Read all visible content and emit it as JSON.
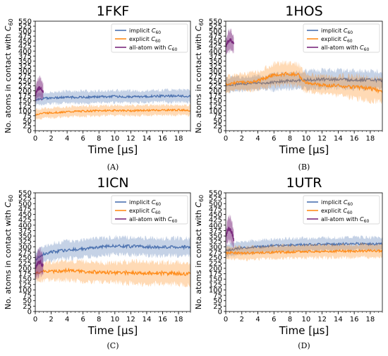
{
  "chart_data": [
    {
      "type": "line",
      "panel": "(A)",
      "title": "1FKF",
      "xlabel": "Time [μs]",
      "ylabel": "No. atoms in contact with C60",
      "xlim": [
        0,
        19.5
      ],
      "ylim": [
        0,
        550
      ],
      "xticks": [
        0,
        2,
        4,
        6,
        8,
        10,
        12,
        14,
        16,
        18
      ],
      "yticks": [
        0,
        25,
        50,
        75,
        100,
        125,
        150,
        175,
        200,
        225,
        250,
        275,
        300,
        325,
        350,
        375,
        400,
        425,
        450,
        475,
        500,
        525,
        550
      ],
      "legend_position": "top-right",
      "series": [
        {
          "name": "implicit C60",
          "color": "#4c72b0",
          "x": [
            0,
            0.5,
            1,
            2,
            4,
            6,
            8,
            10,
            12,
            14,
            16,
            18,
            19.5
          ],
          "mean": [
            155,
            160,
            162,
            165,
            168,
            168,
            170,
            172,
            170,
            172,
            174,
            175,
            172
          ],
          "spread": [
            30,
            30,
            30,
            30,
            30,
            30,
            30,
            30,
            30,
            30,
            30,
            30,
            30
          ]
        },
        {
          "name": "explicit C60",
          "color": "#ff8c1a",
          "x": [
            0,
            0.5,
            1,
            2,
            4,
            6,
            8,
            10,
            12,
            14,
            16,
            18,
            19.5
          ],
          "mean": [
            80,
            85,
            88,
            90,
            95,
            98,
            100,
            102,
            100,
            102,
            103,
            104,
            102
          ],
          "spread": [
            25,
            25,
            25,
            25,
            25,
            25,
            25,
            25,
            25,
            25,
            25,
            25,
            25
          ]
        },
        {
          "name": "all-atom with C60",
          "color": "#7b2a7d",
          "x": [
            0,
            0.2,
            0.4,
            0.6,
            0.8,
            1.0
          ],
          "mean": [
            180,
            200,
            210,
            215,
            205,
            195
          ],
          "spread": [
            40,
            50,
            50,
            50,
            45,
            40
          ]
        }
      ]
    },
    {
      "type": "line",
      "panel": "(B)",
      "title": "1HOS",
      "xlabel": "Time [μs]",
      "ylabel": "No. atoms in contact with C60",
      "xlim": [
        0,
        19.5
      ],
      "ylim": [
        0,
        550
      ],
      "xticks": [
        0,
        2,
        4,
        6,
        8,
        10,
        12,
        14,
        16,
        18
      ],
      "yticks": [
        0,
        25,
        50,
        75,
        100,
        125,
        150,
        175,
        200,
        225,
        250,
        275,
        300,
        325,
        350,
        375,
        400,
        425,
        450,
        475,
        500,
        525,
        550
      ],
      "legend_position": "top-right",
      "series": [
        {
          "name": "implicit C60",
          "color": "#4c72b0",
          "x": [
            0,
            1,
            2,
            3,
            4,
            5,
            6,
            7,
            8,
            9,
            10,
            12,
            14,
            16,
            18,
            19.5
          ],
          "mean": [
            230,
            232,
            235,
            238,
            240,
            238,
            245,
            248,
            250,
            252,
            255,
            258,
            258,
            255,
            255,
            252
          ],
          "spread": [
            35,
            35,
            35,
            35,
            35,
            35,
            40,
            40,
            40,
            40,
            45,
            45,
            45,
            45,
            45,
            45
          ]
        },
        {
          "name": "explicit C60",
          "color": "#ff8c1a",
          "x": [
            0,
            1,
            2,
            3,
            4,
            5,
            6,
            7,
            8,
            9,
            10,
            12,
            14,
            16,
            18,
            19.5
          ],
          "mean": [
            235,
            240,
            245,
            245,
            250,
            265,
            280,
            285,
            285,
            280,
            240,
            230,
            225,
            220,
            210,
            200
          ],
          "spread": [
            40,
            40,
            40,
            45,
            45,
            50,
            55,
            55,
            55,
            55,
            45,
            45,
            50,
            55,
            60,
            60
          ]
        },
        {
          "name": "all-atom with C60",
          "color": "#7b2a7d",
          "x": [
            0,
            0.2,
            0.4,
            0.6,
            0.8,
            1.0
          ],
          "mean": [
            420,
            440,
            450,
            455,
            445,
            435
          ],
          "spread": [
            35,
            45,
            50,
            50,
            45,
            40
          ]
        }
      ]
    },
    {
      "type": "line",
      "panel": "(C)",
      "title": "1ICN",
      "xlabel": "Time [μs]",
      "ylabel": "No. atoms in contact with C60",
      "xlim": [
        0,
        19.5
      ],
      "ylim": [
        0,
        550
      ],
      "xticks": [
        0,
        2,
        4,
        6,
        8,
        10,
        12,
        14,
        16,
        18
      ],
      "yticks": [
        0,
        25,
        50,
        75,
        100,
        125,
        150,
        175,
        200,
        225,
        250,
        275,
        300,
        325,
        350,
        375,
        400,
        425,
        450,
        475,
        500,
        525,
        550
      ],
      "legend_position": "top-right",
      "series": [
        {
          "name": "implicit C60",
          "color": "#4c72b0",
          "x": [
            0,
            0.5,
            1,
            2,
            4,
            6,
            8,
            10,
            12,
            14,
            16,
            18,
            19.5
          ],
          "mean": [
            240,
            255,
            265,
            275,
            285,
            290,
            298,
            305,
            302,
            300,
            298,
            300,
            298
          ],
          "spread": [
            35,
            35,
            35,
            40,
            40,
            40,
            40,
            40,
            40,
            40,
            40,
            40,
            40
          ]
        },
        {
          "name": "explicit C60",
          "color": "#ff8c1a",
          "x": [
            0,
            0.5,
            1,
            2,
            4,
            6,
            8,
            10,
            12,
            14,
            16,
            18,
            19.5
          ],
          "mean": [
            175,
            180,
            185,
            185,
            190,
            185,
            182,
            180,
            180,
            178,
            178,
            176,
            175
          ],
          "spread": [
            35,
            40,
            40,
            40,
            45,
            45,
            45,
            45,
            50,
            50,
            50,
            50,
            50
          ]
        },
        {
          "name": "all-atom with C60",
          "color": "#7b2a7d",
          "x": [
            0,
            0.2,
            0.4,
            0.6,
            0.8,
            1.0
          ],
          "mean": [
            200,
            215,
            225,
            230,
            220,
            210
          ],
          "spread": [
            45,
            55,
            60,
            60,
            55,
            45
          ]
        }
      ]
    },
    {
      "type": "line",
      "panel": "(D)",
      "title": "1UTR",
      "xlabel": "Time [μs]",
      "ylabel": "No. atoms in contact with C60",
      "xlim": [
        0,
        19.5
      ],
      "ylim": [
        0,
        550
      ],
      "xticks": [
        0,
        2,
        4,
        6,
        8,
        10,
        12,
        14,
        16,
        18
      ],
      "yticks": [
        0,
        25,
        50,
        75,
        100,
        125,
        150,
        175,
        200,
        225,
        250,
        275,
        300,
        325,
        350,
        375,
        400,
        425,
        450,
        475,
        500,
        525,
        550
      ],
      "legend_position": "top-right",
      "series": [
        {
          "name": "implicit C60",
          "color": "#4c72b0",
          "x": [
            0,
            0.5,
            1,
            2,
            4,
            6,
            8,
            10,
            12,
            14,
            16,
            18,
            19.5
          ],
          "mean": [
            280,
            285,
            290,
            295,
            300,
            305,
            308,
            310,
            312,
            312,
            315,
            313,
            312
          ],
          "spread": [
            30,
            30,
            30,
            30,
            30,
            30,
            30,
            30,
            30,
            30,
            30,
            30,
            30
          ]
        },
        {
          "name": "explicit C60",
          "color": "#ff8c1a",
          "x": [
            0,
            0.5,
            1,
            2,
            4,
            6,
            8,
            10,
            12,
            14,
            16,
            18,
            19.5
          ],
          "mean": [
            270,
            272,
            272,
            270,
            272,
            275,
            276,
            278,
            278,
            280,
            280,
            282,
            280
          ],
          "spread": [
            30,
            30,
            30,
            30,
            30,
            30,
            30,
            30,
            30,
            30,
            30,
            30,
            30
          ]
        },
        {
          "name": "all-atom with C60",
          "color": "#7b2a7d",
          "x": [
            0,
            0.2,
            0.4,
            0.6,
            0.8,
            1.0
          ],
          "mean": [
            340,
            370,
            385,
            380,
            360,
            330
          ],
          "spread": [
            40,
            50,
            55,
            55,
            50,
            40
          ]
        }
      ]
    }
  ]
}
